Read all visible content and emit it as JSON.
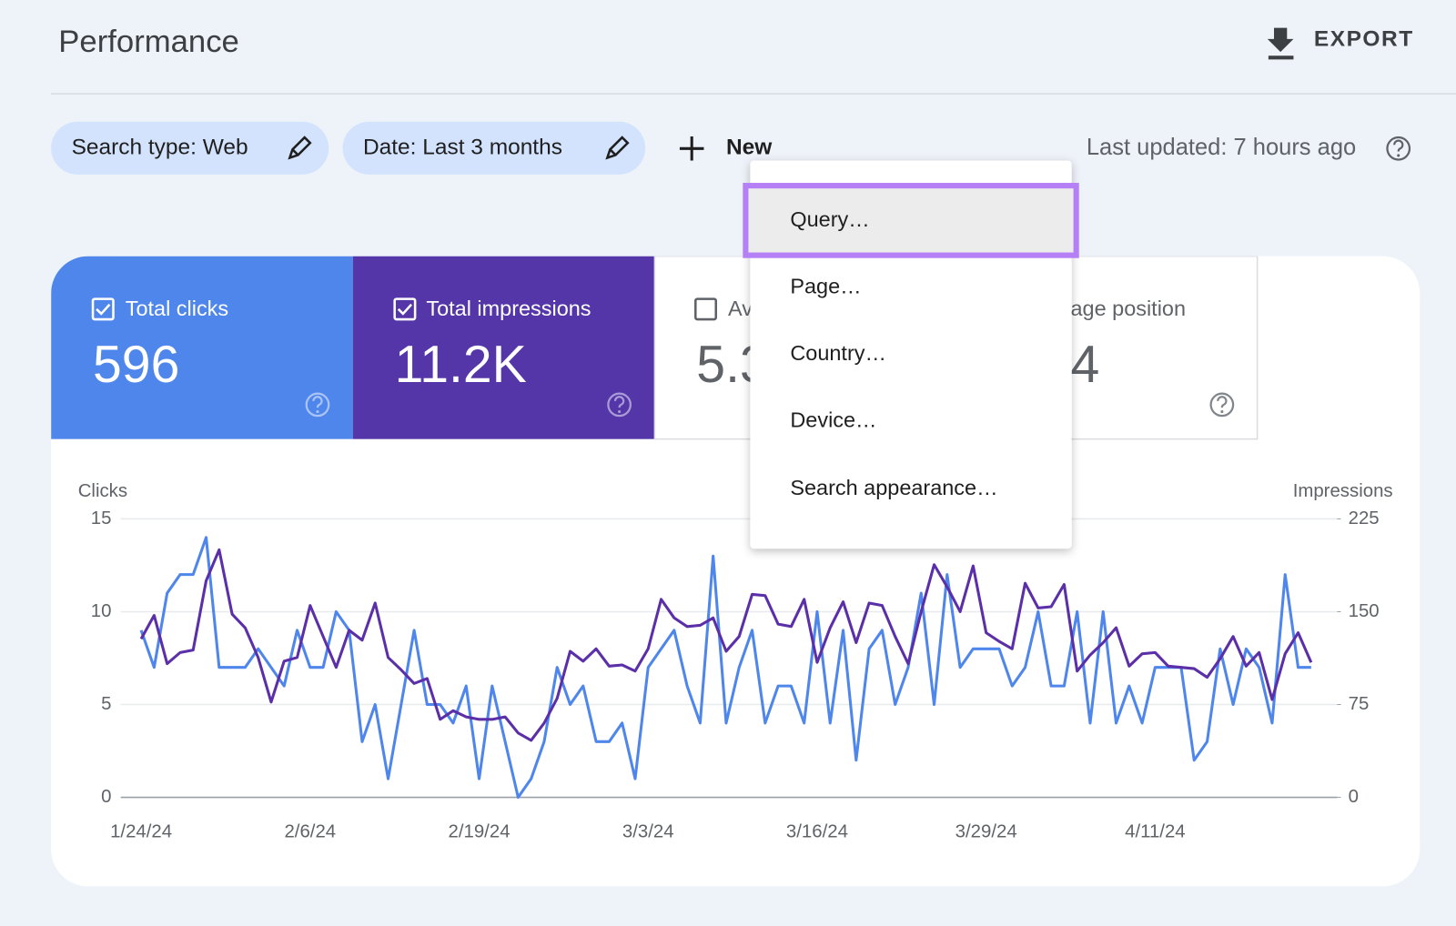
{
  "header": {
    "title": "Performance",
    "export": "EXPORT"
  },
  "filters": [
    "Search type: Web",
    "Date: Last 3 months"
  ],
  "new_button": "New",
  "last_updated": "Last updated: 7 hours ago",
  "cards": [
    {
      "label": "Total clicks",
      "value": "596"
    },
    {
      "label": "Total impressions",
      "value": "11.2K"
    },
    {
      "label": "Av",
      "value": "5.3"
    },
    {
      "label": "age position",
      "value": "4"
    }
  ],
  "menu": {
    "items": [
      "Query…",
      "Page…",
      "Country…",
      "Device…",
      "Search appearance…"
    ]
  },
  "chart_data": {
    "type": "line",
    "y_label": "Clicks",
    "y2_label": "Impressions",
    "categories": [
      "1/24/24",
      null,
      null,
      null,
      null,
      null,
      null,
      null,
      null,
      null,
      null,
      null,
      null,
      "2/6/24",
      null,
      null,
      null,
      null,
      null,
      null,
      null,
      null,
      null,
      null,
      null,
      null,
      "2/19/24",
      null,
      null,
      null,
      null,
      null,
      null,
      null,
      null,
      null,
      null,
      null,
      null,
      "3/3/24",
      null,
      null,
      null,
      null,
      null,
      null,
      null,
      null,
      null,
      null,
      null,
      null,
      "3/16/24",
      null,
      null,
      null,
      null,
      null,
      null,
      null,
      null,
      null,
      null,
      null,
      null,
      "3/29/24",
      null,
      null,
      null,
      null,
      null,
      null,
      null,
      null,
      null,
      null,
      null,
      null,
      "4/11/24",
      null,
      null,
      null,
      null,
      null,
      null,
      null,
      null,
      null,
      null,
      null,
      null
    ],
    "ylim": [
      0,
      15
    ],
    "yticks": [
      0,
      5,
      10,
      15
    ],
    "y2lim": [
      0,
      225
    ],
    "y2ticks": [
      0,
      75,
      150,
      225
    ],
    "grid": true,
    "series": [
      {
        "color": "#4f86ec",
        "values": [
          9,
          7,
          11,
          12,
          12,
          14,
          7,
          7,
          7,
          8,
          7,
          6,
          9,
          7,
          7,
          10,
          9,
          3,
          5,
          1,
          5,
          9,
          5,
          5,
          4,
          6,
          1,
          6,
          3,
          0,
          1,
          3,
          7,
          5,
          6,
          3,
          3,
          4,
          1,
          7,
          8,
          9,
          6,
          4,
          13,
          4,
          7,
          9,
          4,
          6,
          6,
          4,
          10,
          4,
          9,
          2,
          8,
          9,
          5,
          7,
          11,
          5,
          12,
          7,
          8,
          8,
          8,
          6,
          7,
          10,
          6,
          6,
          10,
          4,
          10,
          4,
          6,
          4,
          7,
          7,
          7,
          2,
          3,
          8,
          5,
          8,
          7,
          4,
          12,
          7,
          7
        ]
      },
      {
        "color": "#5b2fa8",
        "axis": "y2",
        "values": [
          128,
          147,
          108,
          117,
          119,
          175,
          200,
          148,
          137,
          113,
          77,
          110,
          113,
          155,
          130,
          105,
          135,
          127,
          157,
          113,
          103,
          92,
          96,
          63,
          70,
          65,
          63,
          63,
          65,
          52,
          46,
          60,
          80,
          118,
          110,
          120,
          106,
          107,
          102,
          120,
          160,
          145,
          138,
          139,
          145,
          118,
          130,
          164,
          163,
          140,
          138,
          160,
          109,
          137,
          158,
          125,
          157,
          155,
          130,
          108,
          150,
          188,
          170,
          150,
          187,
          133,
          126,
          120,
          173,
          153,
          154,
          172,
          102,
          115,
          125,
          137,
          106,
          116,
          117,
          106,
          105,
          104,
          97,
          112,
          130,
          106,
          117,
          79,
          116,
          133,
          109
        ]
      }
    ]
  }
}
